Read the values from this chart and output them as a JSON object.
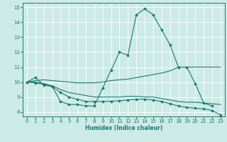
{
  "xlabel": "Humidex (Indice chaleur)",
  "bg_color": "#cceae7",
  "line_color": "#1a7a6e",
  "grid_color": "#ffffff",
  "xlim": [
    -0.5,
    23.5
  ],
  "ylim": [
    7.7,
    15.3
  ],
  "yticks": [
    8,
    9,
    10,
    11,
    12,
    13,
    14,
    15
  ],
  "xticks": [
    0,
    1,
    2,
    3,
    4,
    5,
    6,
    7,
    8,
    9,
    10,
    11,
    12,
    13,
    14,
    15,
    16,
    17,
    18,
    19,
    20,
    21,
    22,
    23
  ],
  "lines": [
    {
      "x": [
        0,
        1,
        2,
        3,
        4,
        5,
        6,
        7,
        8,
        9,
        10,
        11,
        12,
        13,
        14,
        15,
        16,
        17,
        18,
        19,
        20,
        21,
        22
      ],
      "y": [
        10.0,
        10.3,
        9.8,
        9.7,
        8.7,
        8.5,
        8.5,
        8.4,
        8.4,
        9.6,
        10.8,
        12.0,
        11.8,
        14.5,
        14.9,
        14.5,
        13.5,
        12.5,
        11.0,
        11.0,
        9.9,
        8.6,
        8.4
      ],
      "marker": true
    },
    {
      "x": [
        0,
        1,
        2,
        3,
        4,
        5,
        6,
        7,
        8,
        9,
        10,
        11,
        12,
        13,
        14,
        15,
        16,
        17,
        18,
        19,
        20,
        21,
        22,
        23
      ],
      "y": [
        10.0,
        10.1,
        10.15,
        10.1,
        10.05,
        10.0,
        9.95,
        9.95,
        9.95,
        10.0,
        10.1,
        10.15,
        10.2,
        10.3,
        10.4,
        10.5,
        10.6,
        10.75,
        11.0,
        11.0,
        11.0,
        11.0,
        11.0,
        11.0
      ],
      "marker": false
    },
    {
      "x": [
        0,
        1,
        2,
        3,
        4,
        5,
        6,
        7,
        8,
        9,
        10,
        11,
        12,
        13,
        14,
        15,
        16,
        17,
        18,
        19,
        20,
        21,
        22,
        23
      ],
      "y": [
        10.0,
        10.0,
        9.9,
        9.75,
        9.5,
        9.3,
        9.2,
        9.1,
        9.0,
        9.0,
        9.0,
        9.0,
        9.05,
        9.05,
        9.0,
        9.0,
        8.9,
        8.8,
        8.7,
        8.65,
        8.65,
        8.6,
        8.55,
        8.5
      ],
      "marker": false
    },
    {
      "x": [
        0,
        1,
        2,
        3,
        4,
        5,
        6,
        7,
        8,
        9,
        10,
        11,
        12,
        13,
        14,
        15,
        16,
        17,
        18,
        19,
        20,
        21,
        22,
        23
      ],
      "y": [
        10.0,
        9.95,
        9.85,
        9.7,
        9.3,
        9.0,
        8.85,
        8.7,
        8.7,
        8.7,
        8.72,
        8.75,
        8.8,
        8.85,
        8.85,
        8.8,
        8.7,
        8.55,
        8.4,
        8.3,
        8.25,
        8.2,
        8.1,
        7.8
      ],
      "marker": true
    }
  ]
}
